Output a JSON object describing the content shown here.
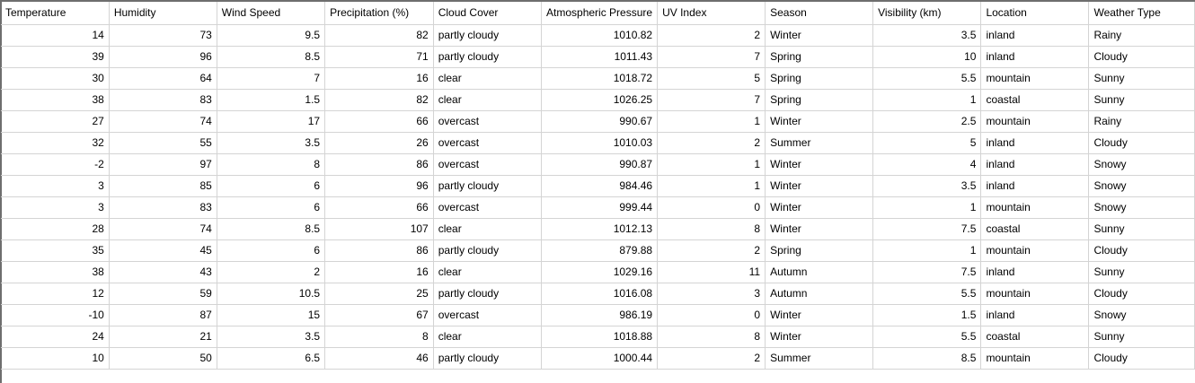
{
  "sheet": {
    "headers": [
      "Temperature",
      "Humidity",
      "Wind Speed",
      "Precipitation (%)",
      "Cloud Cover",
      "Atmospheric Pressure",
      "UV Index",
      "Season",
      "Visibility (km)",
      "Location",
      "Weather Type"
    ],
    "rows": [
      [
        "14",
        "73",
        "9.5",
        "82",
        "partly cloudy",
        "1010.82",
        "2",
        "Winter",
        "3.5",
        "inland",
        "Rainy"
      ],
      [
        "39",
        "96",
        "8.5",
        "71",
        "partly cloudy",
        "1011.43",
        "7",
        "Spring",
        "10",
        "inland",
        "Cloudy"
      ],
      [
        "30",
        "64",
        "7",
        "16",
        "clear",
        "1018.72",
        "5",
        "Spring",
        "5.5",
        "mountain",
        "Sunny"
      ],
      [
        "38",
        "83",
        "1.5",
        "82",
        "clear",
        "1026.25",
        "7",
        "Spring",
        "1",
        "coastal",
        "Sunny"
      ],
      [
        "27",
        "74",
        "17",
        "66",
        "overcast",
        "990.67",
        "1",
        "Winter",
        "2.5",
        "mountain",
        "Rainy"
      ],
      [
        "32",
        "55",
        "3.5",
        "26",
        "overcast",
        "1010.03",
        "2",
        "Summer",
        "5",
        "inland",
        "Cloudy"
      ],
      [
        "-2",
        "97",
        "8",
        "86",
        "overcast",
        "990.87",
        "1",
        "Winter",
        "4",
        "inland",
        "Snowy"
      ],
      [
        "3",
        "85",
        "6",
        "96",
        "partly cloudy",
        "984.46",
        "1",
        "Winter",
        "3.5",
        "inland",
        "Snowy"
      ],
      [
        "3",
        "83",
        "6",
        "66",
        "overcast",
        "999.44",
        "0",
        "Winter",
        "1",
        "mountain",
        "Snowy"
      ],
      [
        "28",
        "74",
        "8.5",
        "107",
        "clear",
        "1012.13",
        "8",
        "Winter",
        "7.5",
        "coastal",
        "Sunny"
      ],
      [
        "35",
        "45",
        "6",
        "86",
        "partly cloudy",
        "879.88",
        "2",
        "Spring",
        "1",
        "mountain",
        "Cloudy"
      ],
      [
        "38",
        "43",
        "2",
        "16",
        "clear",
        "1029.16",
        "11",
        "Autumn",
        "7.5",
        "inland",
        "Sunny"
      ],
      [
        "12",
        "59",
        "10.5",
        "25",
        "partly cloudy",
        "1016.08",
        "3",
        "Autumn",
        "5.5",
        "mountain",
        "Cloudy"
      ],
      [
        "-10",
        "87",
        "15",
        "67",
        "overcast",
        "986.19",
        "0",
        "Winter",
        "1.5",
        "inland",
        "Snowy"
      ],
      [
        "24",
        "21",
        "3.5",
        "8",
        "clear",
        "1018.88",
        "8",
        "Winter",
        "5.5",
        "coastal",
        "Sunny"
      ],
      [
        "10",
        "50",
        "6.5",
        "46",
        "partly cloudy",
        "1000.44",
        "2",
        "Summer",
        "8.5",
        "mountain",
        "Cloudy"
      ]
    ]
  }
}
